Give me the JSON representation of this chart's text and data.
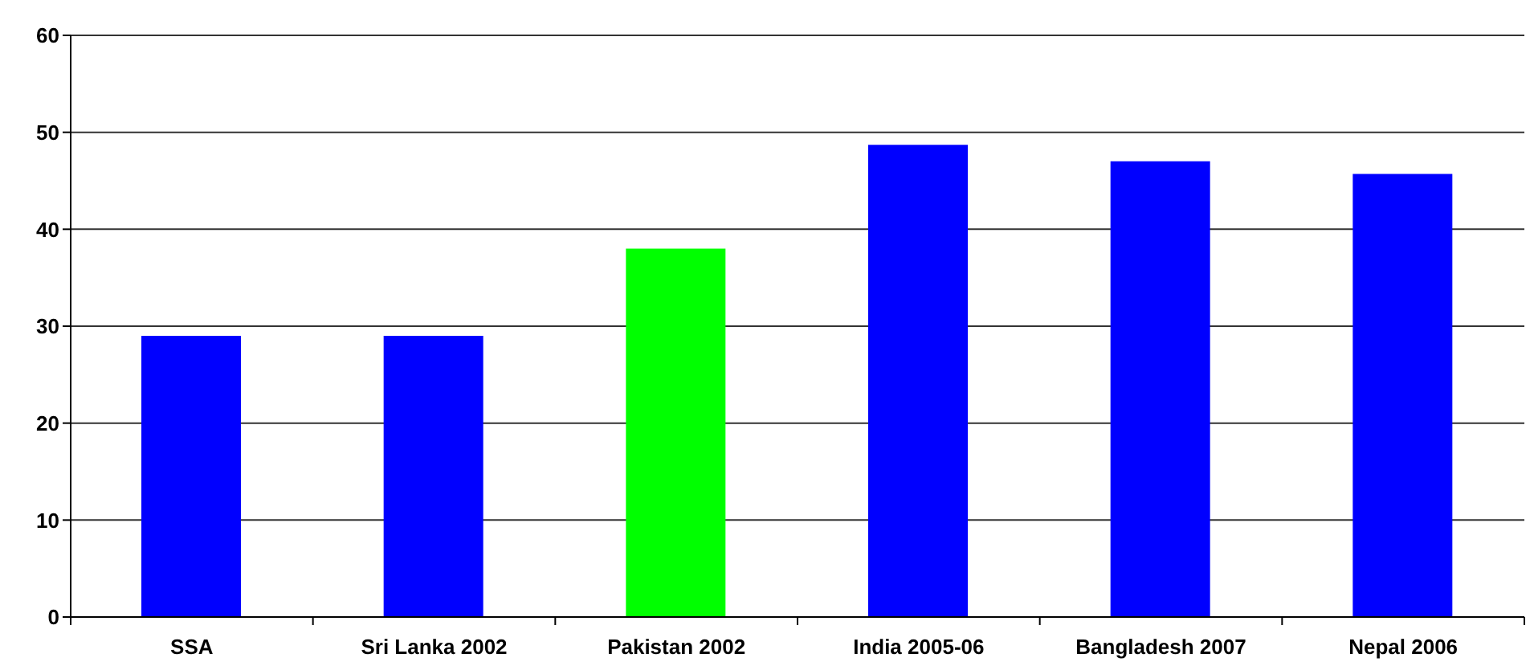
{
  "chart_data": {
    "type": "bar",
    "categories": [
      "SSA",
      "Sri Lanka 2002",
      "Pakistan 2002",
      "India 2005-06",
      "Bangladesh 2007",
      "Nepal 2006"
    ],
    "values": [
      29,
      29,
      38,
      48.7,
      47,
      45.7
    ],
    "colors": [
      "#0000ff",
      "#0000ff",
      "#00ff00",
      "#0000ff",
      "#0000ff",
      "#0000ff"
    ],
    "ylim": [
      0,
      60
    ],
    "yticks": [
      0,
      10,
      20,
      30,
      40,
      50,
      60
    ],
    "grid": "y"
  }
}
